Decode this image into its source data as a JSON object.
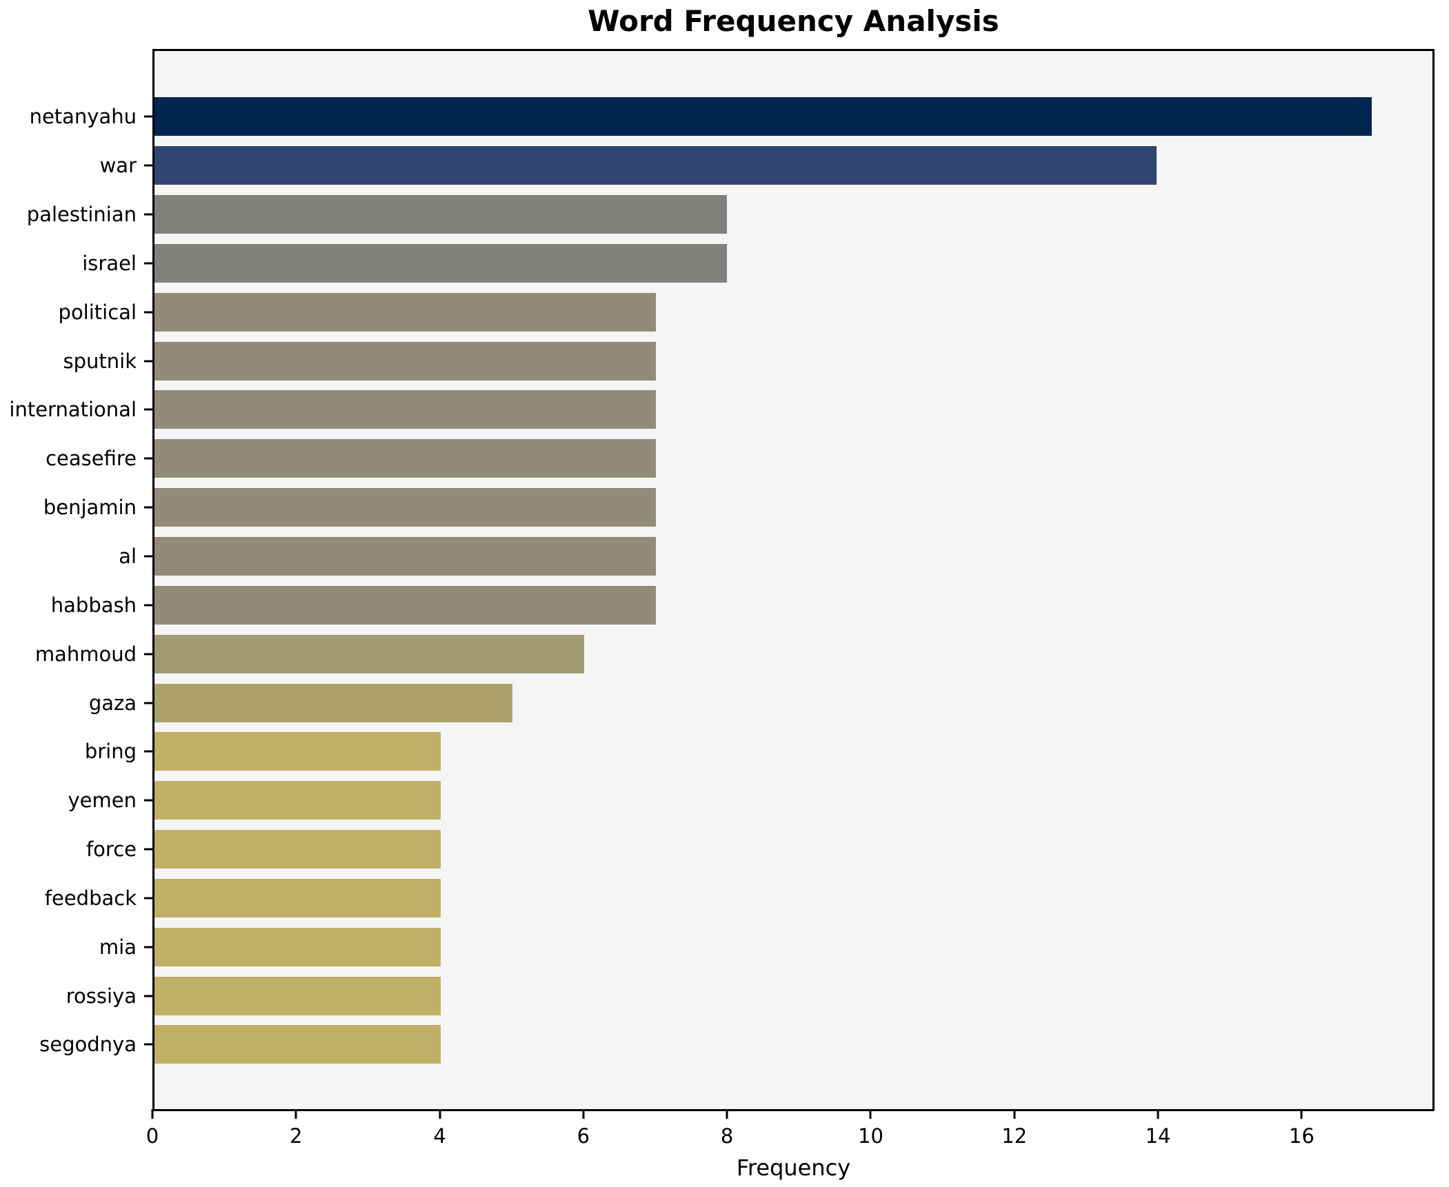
{
  "title": "Word Frequency Analysis",
  "chart_data": {
    "type": "bar",
    "orientation": "horizontal",
    "title": "Word Frequency Analysis",
    "xlabel": "Frequency",
    "ylabel": "",
    "categories": [
      "netanyahu",
      "war",
      "palestinian",
      "israel",
      "political",
      "sputnik",
      "international",
      "ceasefire",
      "benjamin",
      "al",
      "habbash",
      "mahmoud",
      "gaza",
      "bring",
      "yemen",
      "force",
      "feedback",
      "mia",
      "rossiya",
      "segodnya"
    ],
    "values": [
      17,
      14,
      8,
      8,
      7,
      7,
      7,
      7,
      7,
      7,
      7,
      6,
      5,
      4,
      4,
      4,
      4,
      4,
      4,
      4
    ],
    "bar_colors": [
      "#00254e",
      "#314573",
      "#82807a",
      "#82807a",
      "#918b78",
      "#918b78",
      "#918b78",
      "#918b78",
      "#918b78",
      "#918b78",
      "#918b78",
      "#a19a73",
      "#ada26c",
      "#bfb066",
      "#bfb066",
      "#bfb066",
      "#bfb066",
      "#bfb066",
      "#bfb066",
      "#bfb066"
    ],
    "xlim": [
      0,
      17.85
    ],
    "x_ticks": [
      0,
      2,
      4,
      6,
      8,
      10,
      12,
      14,
      16
    ],
    "grid": false,
    "legend": null,
    "plot_background": "#f5f5f6",
    "figure_background": "#ffffff",
    "spine_color": "#000000"
  }
}
